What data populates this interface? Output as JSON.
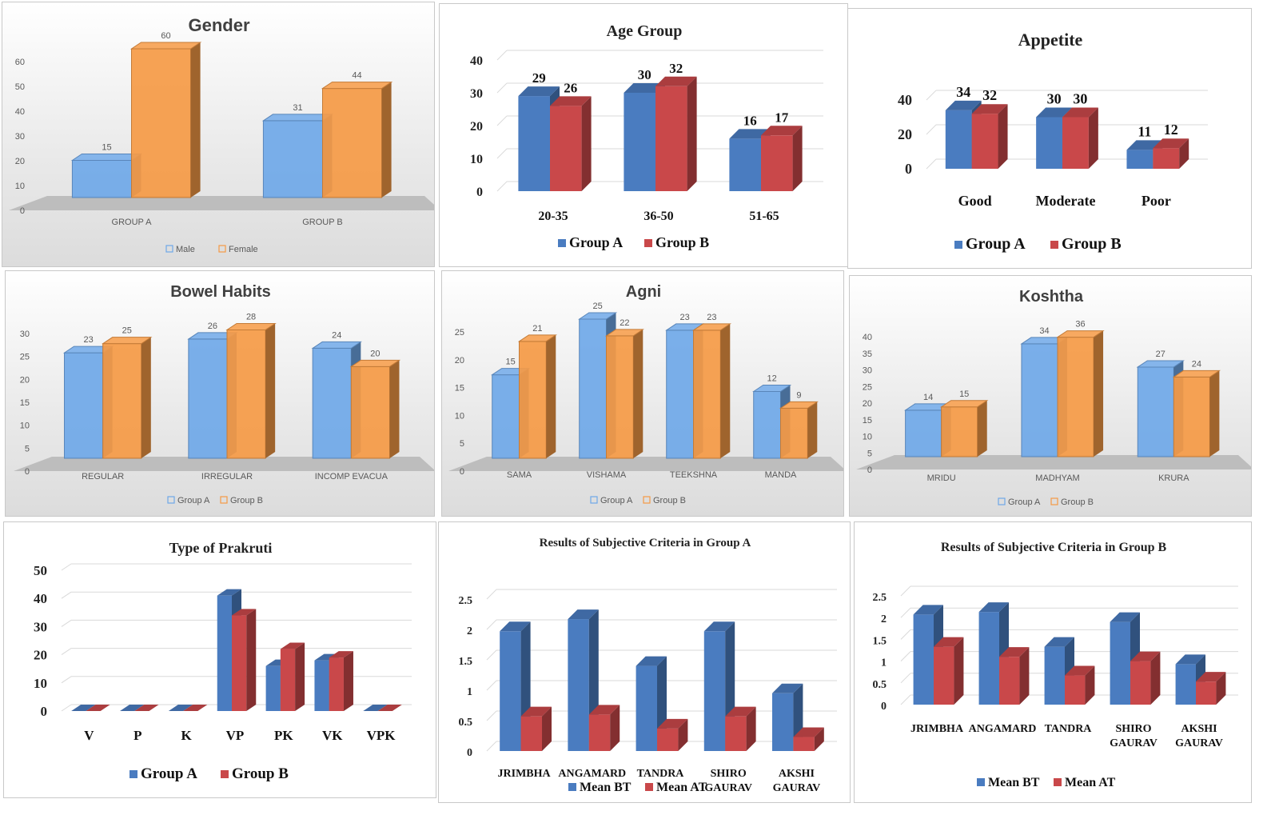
{
  "chart_data": [
    {
      "type": "bar",
      "style": "grey",
      "title": "Gender",
      "categories": [
        "GROUP A",
        "GROUP B"
      ],
      "series": [
        {
          "name": "Male",
          "values": [
            15,
            31
          ]
        },
        {
          "name": "Female",
          "values": [
            60,
            44
          ]
        }
      ],
      "ylim": [
        0,
        60
      ],
      "ticks": [
        0,
        10,
        20,
        30,
        40,
        50,
        60
      ],
      "xlabel": "",
      "ylabel": ""
    },
    {
      "type": "bar",
      "style": "white",
      "title": "Age Group",
      "categories": [
        "20-35",
        "36-50",
        "51-65"
      ],
      "series": [
        {
          "name": "Group A",
          "values": [
            29,
            30,
            16
          ]
        },
        {
          "name": "Group B",
          "values": [
            26,
            32,
            17
          ]
        }
      ],
      "ylim": [
        0,
        40
      ],
      "ticks": [
        0,
        10,
        20,
        30,
        40
      ],
      "xlabel": "",
      "ylabel": ""
    },
    {
      "type": "bar",
      "style": "white",
      "title": "Appetite",
      "categories": [
        "Good",
        "Moderate",
        "Poor"
      ],
      "series": [
        {
          "name": "Group A",
          "values": [
            34,
            30,
            11
          ]
        },
        {
          "name": "Group B",
          "values": [
            32,
            30,
            12
          ]
        }
      ],
      "ylim": [
        0,
        40
      ],
      "ticks": [
        0,
        20,
        40
      ],
      "xlabel": "",
      "ylabel": ""
    },
    {
      "type": "bar",
      "style": "grey",
      "title": "Bowel Habits",
      "categories": [
        "REGULAR",
        "IRREGULAR",
        "INCOMP EVACUA"
      ],
      "series": [
        {
          "name": "Group A",
          "values": [
            23,
            26,
            24
          ]
        },
        {
          "name": "Group B",
          "values": [
            25,
            28,
            20
          ]
        }
      ],
      "ylim": [
        0,
        30
      ],
      "ticks": [
        0,
        5,
        10,
        15,
        20,
        25,
        30
      ],
      "xlabel": "",
      "ylabel": ""
    },
    {
      "type": "bar",
      "style": "grey",
      "title": "Agni",
      "categories": [
        "SAMA",
        "VISHAMA",
        "TEEKSHNA",
        "MANDA"
      ],
      "series": [
        {
          "name": "Group A",
          "values": [
            15,
            25,
            23,
            12
          ]
        },
        {
          "name": "Group B",
          "values": [
            21,
            22,
            23,
            9
          ]
        }
      ],
      "ylim": [
        0,
        25
      ],
      "ticks": [
        0,
        5,
        10,
        15,
        20,
        25
      ],
      "xlabel": "",
      "ylabel": ""
    },
    {
      "type": "bar",
      "style": "grey",
      "title": "Koshtha",
      "categories": [
        "MRIDU",
        "MADHYAM",
        "KRURA"
      ],
      "series": [
        {
          "name": "Group A",
          "values": [
            14,
            34,
            27
          ]
        },
        {
          "name": "Group B",
          "values": [
            15,
            36,
            24
          ]
        }
      ],
      "ylim": [
        0,
        40
      ],
      "ticks": [
        0,
        5,
        10,
        15,
        20,
        25,
        30,
        35,
        40
      ],
      "xlabel": "",
      "ylabel": ""
    },
    {
      "type": "bar",
      "style": "white",
      "title": "Type of Prakruti",
      "categories": [
        "V",
        "P",
        "K",
        "VP",
        "PK",
        "VK",
        "VPK"
      ],
      "series": [
        {
          "name": "Group A",
          "values": [
            0,
            0,
            0,
            41,
            16,
            18,
            0
          ]
        },
        {
          "name": "Group B",
          "values": [
            0,
            0,
            0,
            34,
            22,
            19,
            0
          ]
        }
      ],
      "ylim": [
        0,
        50
      ],
      "ticks": [
        0,
        10,
        20,
        30,
        40,
        50
      ],
      "xlabel": "",
      "ylabel": ""
    },
    {
      "type": "bar",
      "style": "white",
      "title": "Results of Subjective Criteria in Group A",
      "categories": [
        "JRIMBHA",
        "ANGAMARD",
        "TANDRA",
        "SHIRO GAURAV",
        "AKSHI GAURAV"
      ],
      "series": [
        {
          "name": "Mean BT",
          "values": [
            1.97,
            2.17,
            1.4,
            1.97,
            0.95
          ]
        },
        {
          "name": "Mean AT",
          "values": [
            0.57,
            0.6,
            0.37,
            0.57,
            0.23
          ]
        }
      ],
      "ylim": [
        0,
        2.5
      ],
      "ticks": [
        "0",
        "0.5",
        "1",
        "1.5",
        "2",
        "2.5"
      ],
      "xlabel": "",
      "ylabel": ""
    },
    {
      "type": "bar",
      "style": "white",
      "title": "Results of Subjective Criteria in Group B",
      "categories": [
        "JRIMBHA",
        "ANGAMARD",
        "TANDRA",
        "SHIRO GAURAV",
        "AKSHI GAURAV"
      ],
      "series": [
        {
          "name": "Mean BT",
          "values": [
            2.07,
            2.13,
            1.33,
            1.9,
            0.93
          ]
        },
        {
          "name": "Mean AT",
          "values": [
            1.33,
            1.1,
            0.67,
            1.0,
            0.53
          ]
        }
      ],
      "ylim": [
        0,
        2.5
      ],
      "ticks": [
        "0",
        "0.5",
        "1",
        "1.5",
        "2",
        "2.5"
      ],
      "xlabel": "",
      "ylabel": ""
    }
  ],
  "colors": {
    "grey_series": [
      "#6fa8e8",
      "#f59a45"
    ],
    "white_series": [
      "#4a7cc0",
      "#c9484a"
    ]
  }
}
